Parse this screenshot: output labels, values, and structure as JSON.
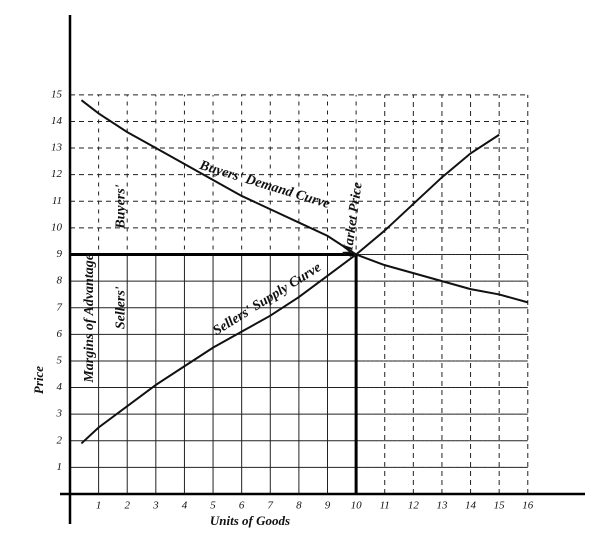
{
  "chart_data": {
    "type": "line",
    "x_label": "Units of Goods",
    "y_label": "Price",
    "xlim": [
      0,
      18
    ],
    "ylim": [
      0,
      18
    ],
    "xticks": [
      1,
      2,
      3,
      4,
      5,
      6,
      7,
      8,
      9,
      10,
      11,
      12,
      13,
      14,
      15,
      16
    ],
    "yticks": [
      1,
      2,
      3,
      4,
      5,
      6,
      7,
      8,
      9,
      10,
      11,
      12,
      13,
      14,
      15
    ],
    "grid": true,
    "color": "#111",
    "equilibrium": {
      "x": 10,
      "y": 9
    },
    "series": [
      {
        "name": "Buyers' Demand Curve",
        "x": [
          0.4,
          1,
          2,
          3,
          4,
          5,
          6,
          7,
          8,
          9,
          10,
          11,
          12,
          13,
          14,
          15,
          16
        ],
        "values": [
          14.8,
          14.3,
          13.6,
          13,
          12.4,
          11.8,
          11.2,
          10.7,
          10.2,
          9.7,
          9,
          8.6,
          8.3,
          8,
          7.7,
          7.5,
          7.2
        ]
      },
      {
        "name": "Sellers' Supply Curve",
        "x": [
          0.4,
          1,
          2,
          3,
          4,
          5,
          6,
          7,
          8,
          9,
          10,
          11,
          12,
          13,
          14,
          15
        ],
        "values": [
          1.9,
          2.5,
          3.3,
          4.1,
          4.8,
          5.5,
          6.1,
          6.7,
          7.4,
          8.2,
          9,
          9.9,
          10.9,
          11.9,
          12.8,
          13.5
        ]
      }
    ],
    "annotations": {
      "market_price": "Market Price",
      "margins": "Margins of Advantage",
      "buyers": "Buyers'",
      "sellers": "Sellers'"
    }
  }
}
